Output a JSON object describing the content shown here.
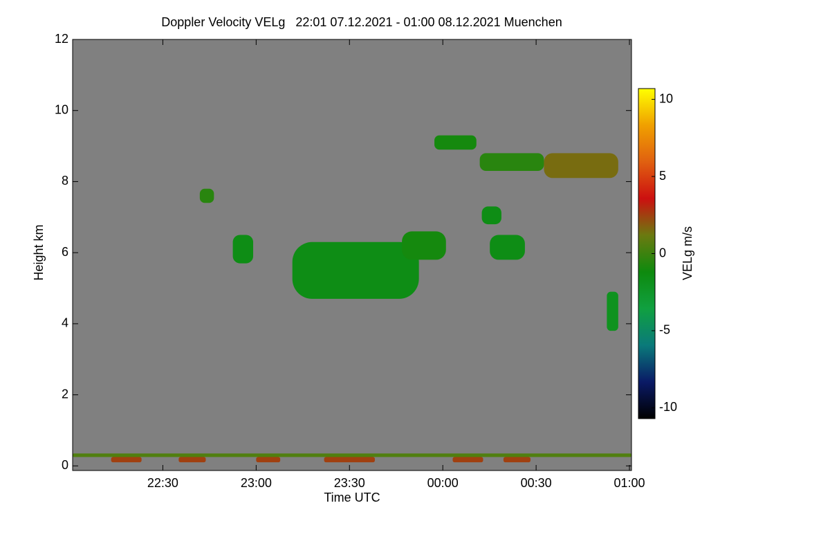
{
  "chart_data": {
    "type": "heatmap",
    "title": "Doppler Velocity VELg   22:01 07.12.2021 - 01:00 08.12.2021 Muenchen",
    "x_label": "Time UTC",
    "y_label": "Height km",
    "colorbar_label": "VELg m/s",
    "xlim": [
      22.0167,
      25.011
    ],
    "ylim": [
      -0.13,
      12
    ],
    "xticks": [
      {
        "value": 22.5,
        "label": "22:30"
      },
      {
        "value": 23,
        "label": "23:00"
      },
      {
        "value": 23.5,
        "label": "23:30"
      },
      {
        "value": 24,
        "label": "00:00"
      },
      {
        "value": 24.5,
        "label": "00:30"
      },
      {
        "value": 25,
        "label": "01:00"
      }
    ],
    "yticks": [
      0,
      2,
      4,
      6,
      8,
      10,
      12
    ],
    "zlim": [
      -10.7,
      10.7
    ],
    "zticks": [
      -10,
      -5,
      0,
      5,
      10
    ],
    "background": "#808080",
    "colormap": [
      "#000000",
      "#0a1a66",
      "#0a7a7a",
      "#10a040",
      "#0e8a0e",
      "#6b7a10",
      "#cc1010",
      "#e06010",
      "#f0a000",
      "#ffff00"
    ],
    "cells": [
      {
        "x": [
          23.194,
          23.872
        ],
        "y": [
          4.7,
          6.3
        ],
        "value": -1.5
      },
      {
        "x": [
          22.698,
          22.774
        ],
        "y": [
          7.4,
          7.8
        ],
        "value": -0.5
      },
      {
        "x": [
          22.875,
          22.984
        ],
        "y": [
          5.7,
          6.5
        ],
        "value": -1.5
      },
      {
        "x": [
          23.955,
          24.18
        ],
        "y": [
          8.9,
          9.3
        ],
        "value": -1.0
      },
      {
        "x": [
          24.198,
          24.542
        ],
        "y": [
          8.3,
          8.8
        ],
        "value": -0.5
      },
      {
        "x": [
          24.542,
          24.94
        ],
        "y": [
          8.1,
          8.8
        ],
        "value": 1.5
      },
      {
        "x": [
          24.209,
          24.314
        ],
        "y": [
          6.8,
          7.3
        ],
        "value": -1.5
      },
      {
        "x": [
          24.252,
          24.44
        ],
        "y": [
          5.8,
          6.5
        ],
        "value": -1.5
      },
      {
        "x": [
          23.781,
          24.017
        ],
        "y": [
          5.8,
          6.6
        ],
        "value": -1.0
      },
      {
        "x": [
          24.879,
          24.94
        ],
        "y": [
          3.8,
          4.9
        ],
        "value": -2.0
      },
      {
        "x": [
          22.0167,
          25.011
        ],
        "y": [
          0.25,
          0.35
        ],
        "value": 0.5
      },
      {
        "x": [
          22.223,
          22.386
        ],
        "y": [
          0.1,
          0.25
        ],
        "value": 2.5
      },
      {
        "x": [
          22.585,
          22.73
        ],
        "y": [
          0.1,
          0.25
        ],
        "value": 2.5
      },
      {
        "x": [
          23.0,
          23.129
        ],
        "y": [
          0.1,
          0.25
        ],
        "value": 2.5
      },
      {
        "x": [
          23.364,
          23.636
        ],
        "y": [
          0.1,
          0.25
        ],
        "value": 2.5
      },
      {
        "x": [
          24.053,
          24.216
        ],
        "y": [
          0.1,
          0.25
        ],
        "value": 2.5
      },
      {
        "x": [
          24.325,
          24.47
        ],
        "y": [
          0.1,
          0.25
        ],
        "value": 2.5
      }
    ]
  }
}
